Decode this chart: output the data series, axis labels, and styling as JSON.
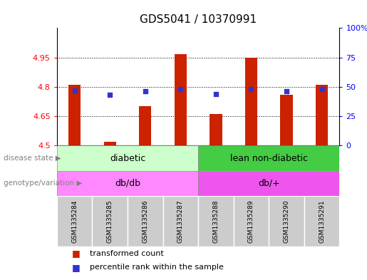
{
  "title": "GDS5041 / 10370991",
  "samples": [
    "GSM1335284",
    "GSM1335285",
    "GSM1335286",
    "GSM1335287",
    "GSM1335288",
    "GSM1335289",
    "GSM1335290",
    "GSM1335291"
  ],
  "transformed_counts": [
    4.81,
    4.52,
    4.7,
    4.965,
    4.66,
    4.95,
    4.76,
    4.81
  ],
  "percentile_ranks": [
    47,
    43,
    46,
    48,
    44,
    48,
    46,
    48
  ],
  "ylim_left": [
    4.5,
    5.1
  ],
  "ylim_right": [
    0,
    100
  ],
  "yticks_left": [
    4.5,
    4.65,
    4.8,
    4.95
  ],
  "ytick_labels_left": [
    "4.5",
    "4.65",
    "4.8",
    "4.95"
  ],
  "yticks_right": [
    0,
    25,
    50,
    75,
    100
  ],
  "ytick_labels_right": [
    "0",
    "25",
    "50",
    "75",
    "100%"
  ],
  "bar_color": "#cc2200",
  "dot_color": "#3333cc",
  "bar_width": 0.35,
  "disease_state_labels": [
    "diabetic",
    "lean non-diabetic"
  ],
  "disease_state_color_left": "#ccffcc",
  "disease_state_color_right": "#44cc44",
  "genotype_labels": [
    "db/db",
    "db/+"
  ],
  "genotype_color_left": "#ff88ff",
  "genotype_color_right": "#ee55ee",
  "legend_red_label": "transformed count",
  "legend_blue_label": "percentile rank within the sample",
  "label_row1": "disease state",
  "label_row2": "genotype/variation",
  "bg_color": "#ffffff",
  "plot_bg": "#e8e8e8",
  "title_fontsize": 11
}
